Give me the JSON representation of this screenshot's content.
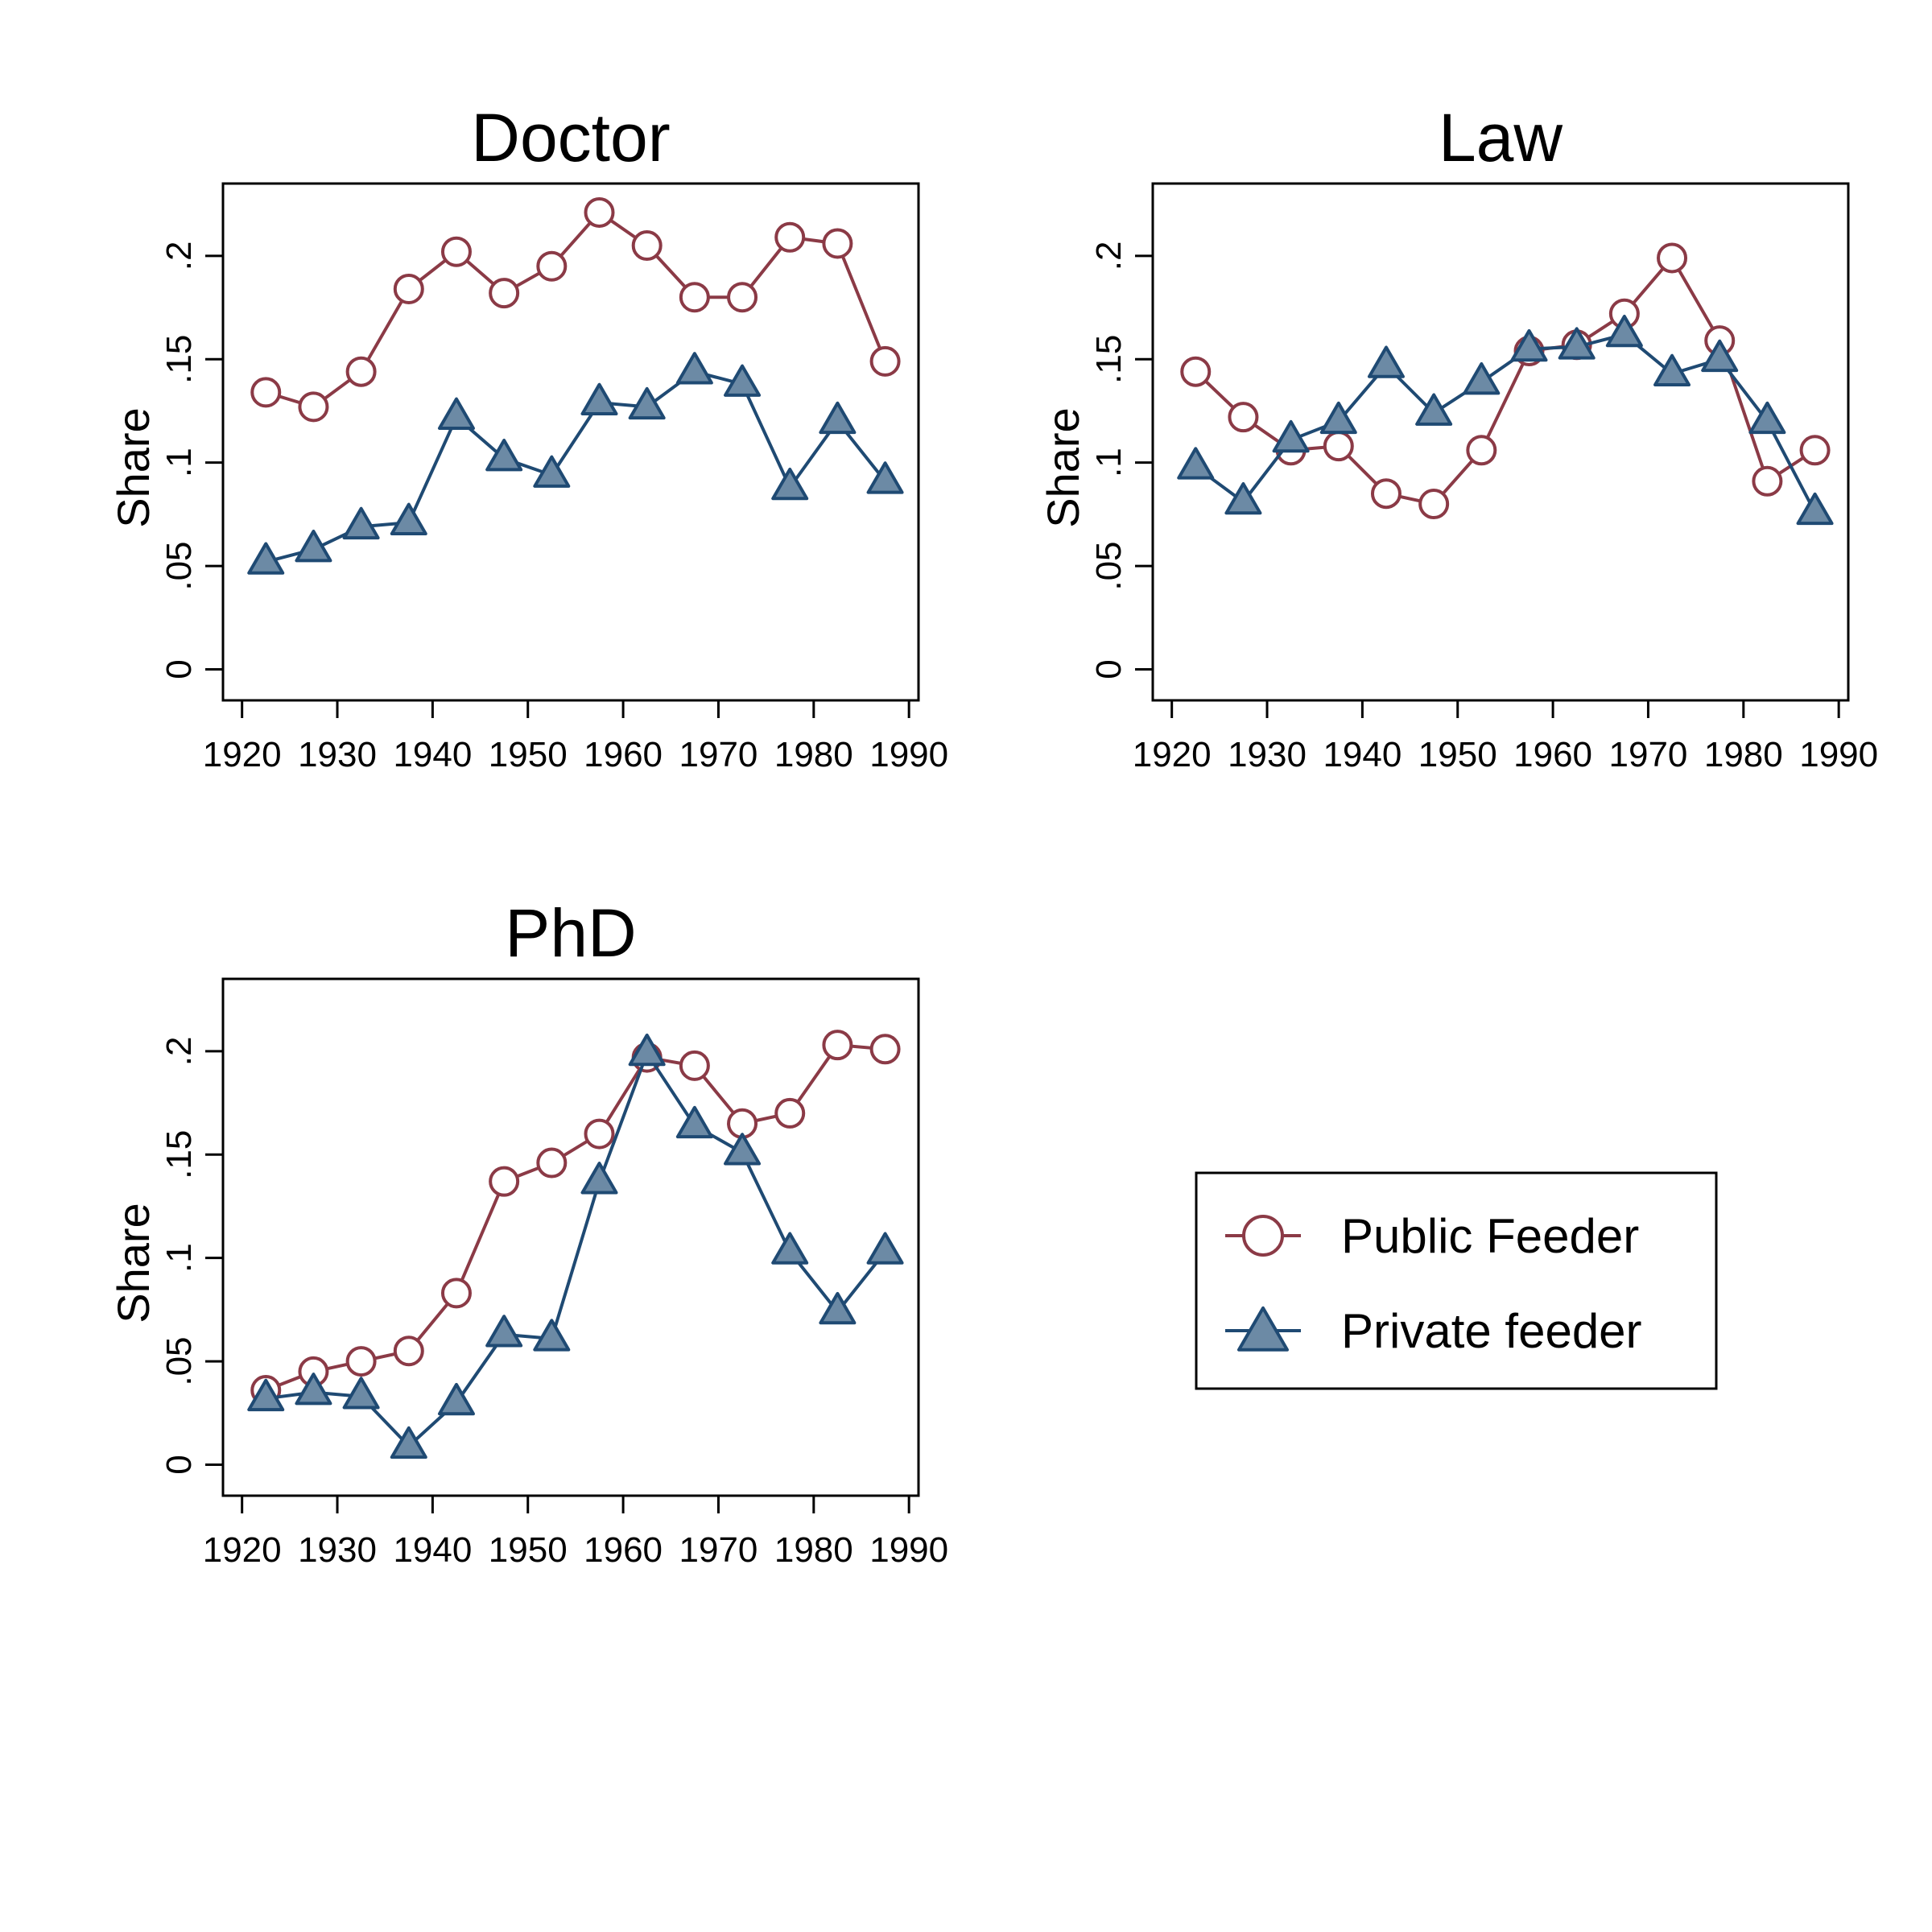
{
  "figure": {
    "legend": {
      "placement": "bottom-right",
      "items": [
        {
          "label": "Public Feeder",
          "marker": "circle-hollow",
          "color": "#8b3a46"
        },
        {
          "label": "Private feeder",
          "marker": "triangle-filled",
          "color": "#1f4a73",
          "fill": "#6c8aa5"
        }
      ]
    }
  },
  "chart_data": [
    {
      "type": "line",
      "title": "Doctor",
      "xlabel": "",
      "ylabel": "Share",
      "xlim": [
        1918,
        1991
      ],
      "ylim": [
        -0.015,
        0.235
      ],
      "xticks": [
        1920,
        1930,
        1940,
        1950,
        1960,
        1970,
        1980,
        1990
      ],
      "xtick_labels": [
        "1920",
        "1930",
        "1940",
        "1950",
        "1960",
        "1970",
        "1980",
        "1990"
      ],
      "yticks": [
        0,
        0.05,
        0.1,
        0.15,
        0.2
      ],
      "ytick_labels": [
        "0",
        ".05",
        ".1",
        ".15",
        ".2"
      ],
      "grid": false,
      "x": [
        1922.5,
        1927.5,
        1932.5,
        1937.5,
        1942.5,
        1947.5,
        1952.5,
        1957.5,
        1962.5,
        1967.5,
        1972.5,
        1977.5,
        1982.5,
        1987.5
      ],
      "series": [
        {
          "name": "Public Feeder",
          "values": [
            0.134,
            0.127,
            0.144,
            0.184,
            0.202,
            0.182,
            0.195,
            0.221,
            0.205,
            0.18,
            0.18,
            0.209,
            0.206,
            0.149
          ]
        },
        {
          "name": "Private feeder",
          "values": [
            0.052,
            0.058,
            0.069,
            0.071,
            0.122,
            0.102,
            0.094,
            0.129,
            0.127,
            0.144,
            0.138,
            0.088,
            0.12,
            0.091
          ]
        }
      ]
    },
    {
      "type": "line",
      "title": "Law",
      "xlabel": "",
      "ylabel": "Share",
      "xlim": [
        1918,
        1991
      ],
      "ylim": [
        -0.015,
        0.235
      ],
      "xticks": [
        1920,
        1930,
        1940,
        1950,
        1960,
        1970,
        1980,
        1990
      ],
      "xtick_labels": [
        "1920",
        "1930",
        "1940",
        "1950",
        "1960",
        "1970",
        "1980",
        "1990"
      ],
      "yticks": [
        0,
        0.05,
        0.1,
        0.15,
        0.2
      ],
      "ytick_labels": [
        "0",
        ".05",
        ".1",
        ".15",
        ".2"
      ],
      "grid": false,
      "x": [
        1922.5,
        1927.5,
        1932.5,
        1937.5,
        1942.5,
        1947.5,
        1952.5,
        1957.5,
        1962.5,
        1967.5,
        1972.5,
        1977.5,
        1982.5,
        1987.5
      ],
      "series": [
        {
          "name": "Public Feeder",
          "values": [
            0.144,
            0.122,
            0.106,
            0.108,
            0.085,
            0.08,
            0.106,
            0.154,
            0.157,
            0.172,
            0.199,
            0.159,
            0.091,
            0.106
          ]
        },
        {
          "name": "Private feeder",
          "values": [
            0.098,
            0.081,
            0.111,
            0.12,
            0.147,
            0.124,
            0.139,
            0.155,
            0.156,
            0.162,
            0.143,
            0.15,
            0.12,
            0.076
          ]
        }
      ]
    },
    {
      "type": "line",
      "title": "PhD",
      "xlabel": "",
      "ylabel": "Share",
      "xlim": [
        1918,
        1991
      ],
      "ylim": [
        -0.015,
        0.235
      ],
      "xticks": [
        1920,
        1930,
        1940,
        1950,
        1960,
        1970,
        1980,
        1990
      ],
      "xtick_labels": [
        "1920",
        "1930",
        "1940",
        "1950",
        "1960",
        "1970",
        "1980",
        "1990"
      ],
      "yticks": [
        0,
        0.05,
        0.1,
        0.15,
        0.2
      ],
      "ytick_labels": [
        "0",
        ".05",
        ".1",
        ".15",
        ".2"
      ],
      "grid": false,
      "x": [
        1922.5,
        1927.5,
        1932.5,
        1937.5,
        1942.5,
        1947.5,
        1952.5,
        1957.5,
        1962.5,
        1967.5,
        1972.5,
        1977.5,
        1982.5,
        1987.5
      ],
      "series": [
        {
          "name": "Public Feeder",
          "values": [
            0.036,
            0.045,
            0.05,
            0.055,
            0.083,
            0.137,
            0.146,
            0.16,
            0.197,
            0.193,
            0.165,
            0.17,
            0.203,
            0.201
          ]
        },
        {
          "name": "Private feeder",
          "values": [
            0.032,
            0.035,
            0.033,
            0.009,
            0.03,
            0.063,
            0.061,
            0.137,
            0.199,
            0.164,
            0.151,
            0.103,
            0.074,
            0.103
          ]
        }
      ]
    }
  ]
}
